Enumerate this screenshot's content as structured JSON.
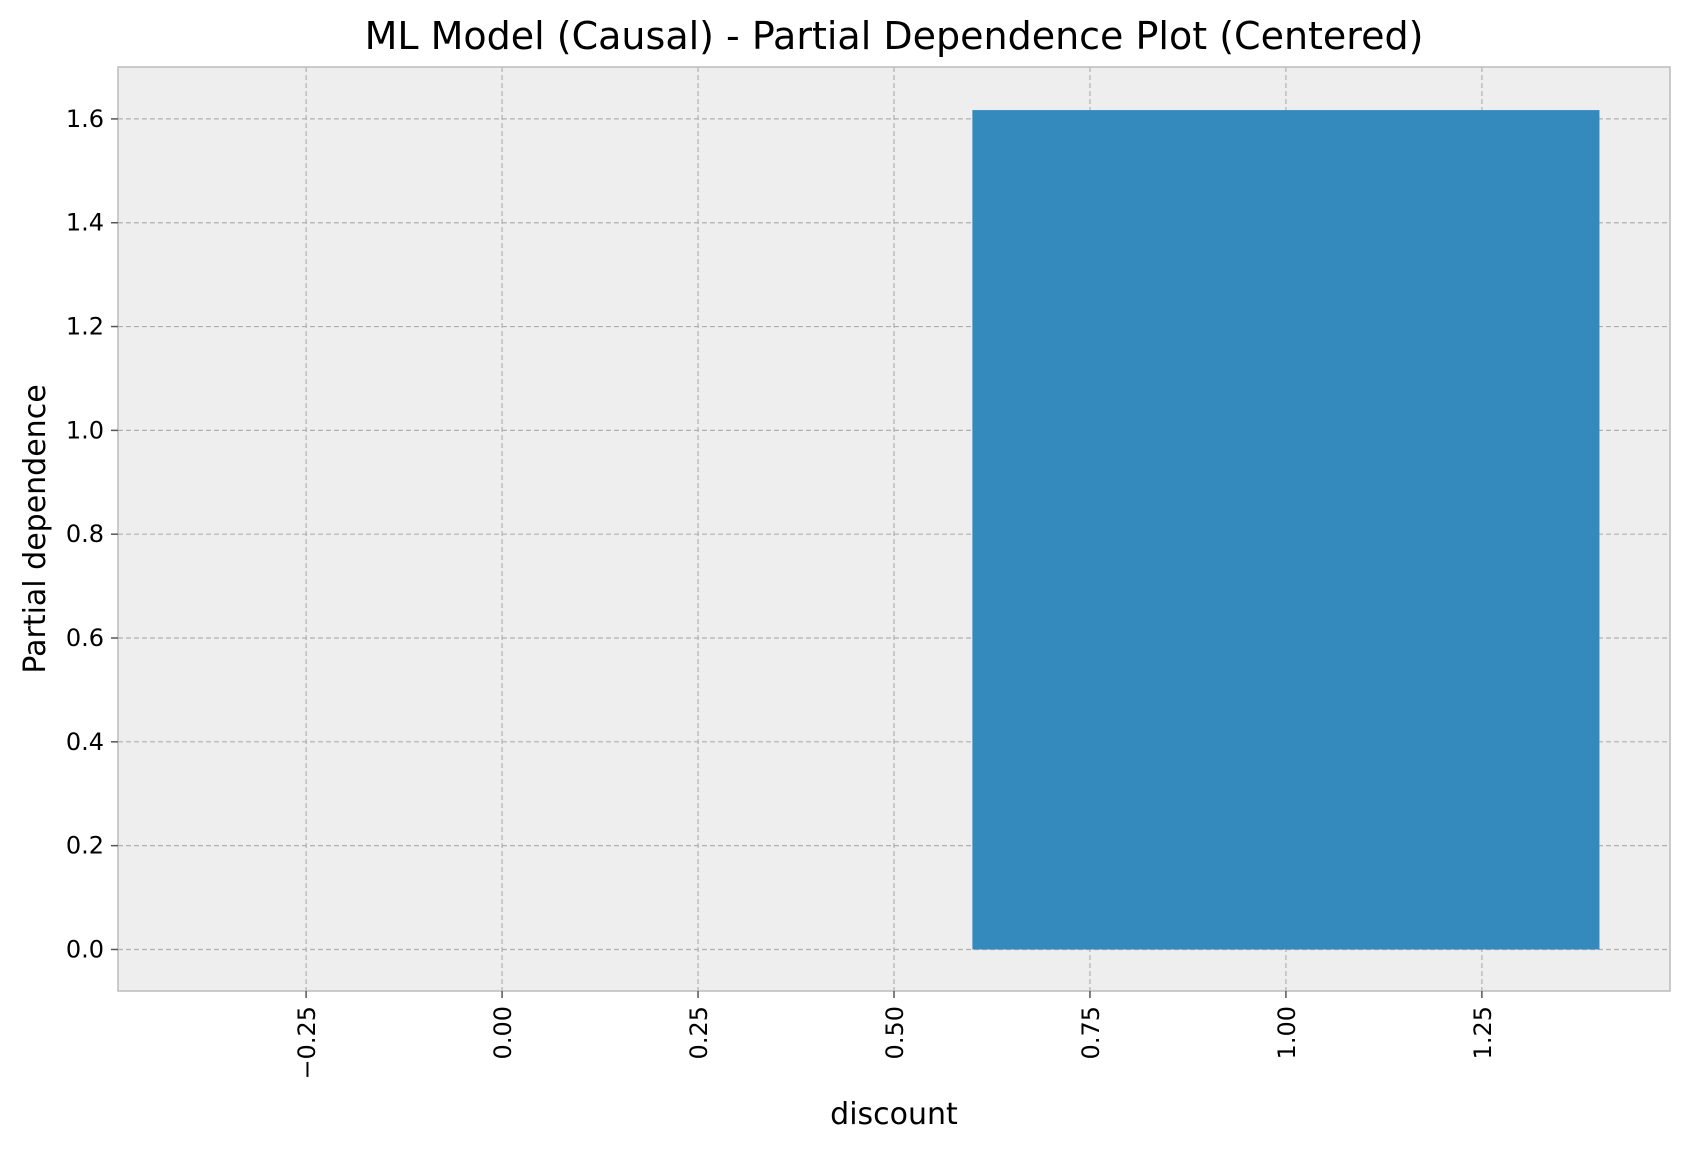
{
  "chart_data": {
    "type": "bar",
    "title": "ML Model (Causal) - Partial Dependence Plot (Centered)",
    "xlabel": "discount",
    "ylabel": "Partial dependence",
    "bars": [
      {
        "x_start": 0.6,
        "x_end": 1.4,
        "value": 1.617
      }
    ],
    "xlim": [
      -0.49,
      1.49
    ],
    "ylim": [
      -0.08,
      1.7
    ],
    "xticks": [
      -0.25,
      0.0,
      0.25,
      0.5,
      0.75,
      1.0,
      1.25
    ],
    "xtick_labels": [
      "−0.25",
      "0.00",
      "0.25",
      "0.50",
      "0.75",
      "1.00",
      "1.25"
    ],
    "yticks": [
      0.0,
      0.2,
      0.4,
      0.6,
      0.8,
      1.0,
      1.2,
      1.4,
      1.6
    ],
    "ytick_labels": [
      "0.0",
      "0.2",
      "0.4",
      "0.6",
      "0.8",
      "1.0",
      "1.2",
      "1.4",
      "1.6"
    ],
    "grid": true,
    "colors": {
      "bar": "#348abd",
      "plot_background": "#eeeeee",
      "frame": "#bcbcbc"
    }
  }
}
